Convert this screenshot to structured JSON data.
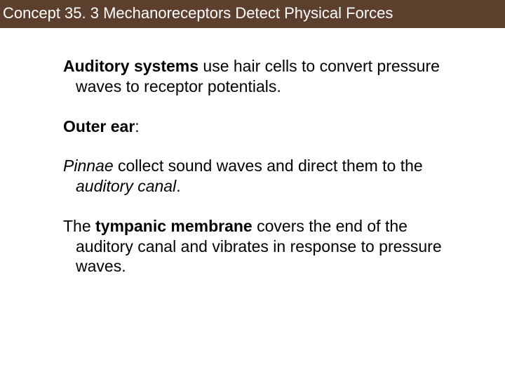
{
  "header": {
    "title": "Concept 35. 3 Mechanoreceptors Detect Physical Forces",
    "bg_color": "#5d3f2e",
    "text_color": "#ffffff",
    "font_size": 22
  },
  "content": {
    "font_size": 23,
    "text_color": "#000000",
    "paragraphs": [
      {
        "runs": [
          {
            "text": "Auditory systems",
            "style": "bold"
          },
          {
            "text": " use hair cells to convert pressure waves to receptor potentials.",
            "style": "normal"
          }
        ]
      },
      {
        "runs": [
          {
            "text": "Outer ear",
            "style": "bold"
          },
          {
            "text": ":",
            "style": "normal"
          }
        ]
      },
      {
        "runs": [
          {
            "text": "Pinnae",
            "style": "italic"
          },
          {
            "text": " collect sound waves and direct them to the ",
            "style": "normal"
          },
          {
            "text": "auditory canal",
            "style": "italic"
          },
          {
            "text": ".",
            "style": "normal"
          }
        ]
      },
      {
        "runs": [
          {
            "text": "The ",
            "style": "normal"
          },
          {
            "text": "tympanic membrane",
            "style": "bold"
          },
          {
            "text": " covers the end of the auditory canal and vibrates in response to pressure waves.",
            "style": "normal"
          }
        ]
      }
    ]
  }
}
